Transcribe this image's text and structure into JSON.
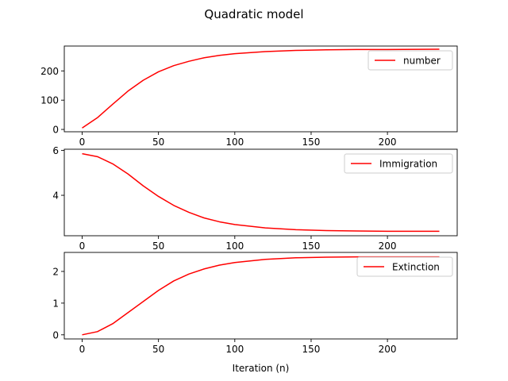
{
  "figure": {
    "title": "Quadratic model"
  },
  "chart_data": [
    {
      "type": "line",
      "title": "",
      "xlabel": "",
      "ylabel": "",
      "xlim": [
        -11.7,
        245.7
      ],
      "ylim": [
        -8,
        285
      ],
      "xticks": [
        0,
        50,
        100,
        150,
        200
      ],
      "xtick_labels": [
        "0",
        "50",
        "100",
        "150",
        "200"
      ],
      "yticks": [
        0,
        100,
        200
      ],
      "ytick_labels": [
        "0",
        "100",
        "200"
      ],
      "grid": false,
      "legend_position": "top-right",
      "series": [
        {
          "name": "number",
          "color": "#ff0000",
          "x": [
            0,
            10,
            20,
            30,
            40,
            50,
            60,
            70,
            80,
            90,
            100,
            120,
            140,
            160,
            180,
            200,
            234
          ],
          "y": [
            5,
            40,
            86,
            131,
            168,
            197,
            218,
            233,
            245,
            253,
            259,
            266,
            270,
            272,
            273,
            273,
            274
          ]
        }
      ]
    },
    {
      "type": "line",
      "title": "",
      "xlabel": "",
      "ylabel": "",
      "xlim": [
        -11.7,
        245.7
      ],
      "ylim": [
        2.2,
        6.05
      ],
      "xticks": [
        0,
        50,
        100,
        150,
        200
      ],
      "xtick_labels": [
        "0",
        "50",
        "100",
        "150",
        "200"
      ],
      "yticks": [
        4,
        6
      ],
      "ytick_labels": [
        "4",
        "6"
      ],
      "grid": false,
      "legend_position": "top-right",
      "series": [
        {
          "name": "Immigration",
          "color": "#ff0000",
          "x": [
            0,
            10,
            20,
            30,
            40,
            50,
            60,
            70,
            80,
            90,
            100,
            120,
            140,
            160,
            180,
            200,
            234
          ],
          "y": [
            5.85,
            5.72,
            5.4,
            4.95,
            4.42,
            3.95,
            3.55,
            3.24,
            2.99,
            2.82,
            2.7,
            2.55,
            2.47,
            2.43,
            2.41,
            2.4,
            2.4
          ]
        }
      ]
    },
    {
      "type": "line",
      "title": "",
      "xlabel": "Iteration (n)",
      "ylabel": "",
      "xlim": [
        -11.7,
        245.7
      ],
      "ylim": [
        -0.13,
        2.6
      ],
      "xticks": [
        0,
        50,
        100,
        150,
        200
      ],
      "xtick_labels": [
        "0",
        "50",
        "100",
        "150",
        "200"
      ],
      "yticks": [
        0,
        1,
        2
      ],
      "ytick_labels": [
        "0",
        "1",
        "2"
      ],
      "grid": false,
      "legend_position": "top-right",
      "series": [
        {
          "name": "Extinction",
          "color": "#ff0000",
          "x": [
            0,
            10,
            20,
            30,
            40,
            50,
            60,
            70,
            80,
            90,
            100,
            120,
            140,
            160,
            180,
            200,
            234
          ],
          "y": [
            0.0,
            0.1,
            0.35,
            0.7,
            1.05,
            1.4,
            1.7,
            1.92,
            2.08,
            2.2,
            2.28,
            2.38,
            2.43,
            2.45,
            2.46,
            2.46,
            2.46
          ]
        }
      ]
    }
  ]
}
